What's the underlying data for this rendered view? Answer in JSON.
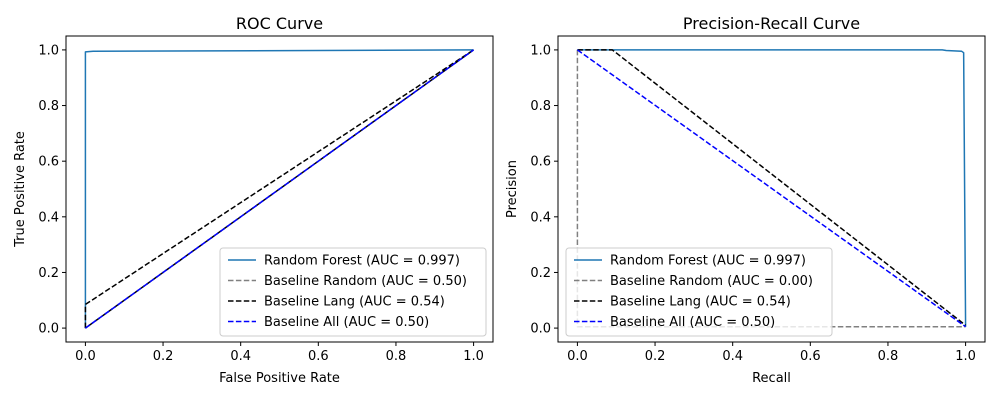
{
  "chart_data": [
    {
      "type": "line",
      "title": "ROC Curve",
      "xlabel": "False Positive Rate",
      "ylabel": "True Positive Rate",
      "xlim": [
        -0.05,
        1.05
      ],
      "ylim": [
        -0.05,
        1.05
      ],
      "xticks": [
        "0.0",
        "0.2",
        "0.4",
        "0.6",
        "0.8",
        "1.0"
      ],
      "yticks": [
        "0.0",
        "0.2",
        "0.4",
        "0.6",
        "0.8",
        "1.0"
      ],
      "grid": false,
      "legend_position": "lower-right",
      "series": [
        {
          "name": "Random Forest (AUC = 0.997)",
          "color": "#1f77b4",
          "dash": "solid",
          "x": [
            0,
            0,
            0.02,
            1.0
          ],
          "y": [
            0,
            0.993,
            0.995,
            1.0
          ]
        },
        {
          "name": "Baseline Random (AUC = 0.50)",
          "color": "#808080",
          "dash": "dashed",
          "x": [
            0,
            1
          ],
          "y": [
            0,
            1
          ]
        },
        {
          "name": "Baseline Lang (AUC = 0.54)",
          "color": "#000000",
          "dash": "dashed",
          "x": [
            0,
            0,
            1,
            1,
            0
          ],
          "y": [
            0,
            0.085,
            1.0,
            1.0,
            0
          ]
        },
        {
          "name": "Baseline All (AUC = 0.50)",
          "color": "#0000ff",
          "dash": "dashed",
          "x": [
            0,
            1
          ],
          "y": [
            0,
            1
          ]
        }
      ]
    },
    {
      "type": "line",
      "title": "Precision-Recall Curve",
      "xlabel": "Recall",
      "ylabel": "Precision",
      "xlim": [
        -0.05,
        1.05
      ],
      "ylim": [
        -0.05,
        1.05
      ],
      "xticks": [
        "0.0",
        "0.2",
        "0.4",
        "0.6",
        "0.8",
        "1.0"
      ],
      "yticks": [
        "0.0",
        "0.2",
        "0.4",
        "0.6",
        "0.8",
        "1.0"
      ],
      "grid": false,
      "legend_position": "lower-left",
      "series": [
        {
          "name": "Random Forest (AUC = 0.997)",
          "color": "#1f77b4",
          "dash": "solid",
          "x": [
            0,
            0.94,
            0.95,
            0.99,
            0.995,
            1.0
          ],
          "y": [
            1.0,
            1.0,
            0.998,
            0.995,
            0.99,
            0.005
          ]
        },
        {
          "name": "Baseline Random (AUC = 0.00)",
          "color": "#808080",
          "dash": "dashed",
          "x": [
            0,
            0,
            1.0
          ],
          "y": [
            1.0,
            0.005,
            0.005
          ]
        },
        {
          "name": "Baseline Lang (AUC = 0.54)",
          "color": "#000000",
          "dash": "dashed",
          "x": [
            0,
            0.09,
            1.0
          ],
          "y": [
            1.0,
            1.0,
            0.01
          ]
        },
        {
          "name": "Baseline All (AUC = 0.50)",
          "color": "#0000ff",
          "dash": "dashed",
          "x": [
            0,
            1.0
          ],
          "y": [
            1.0,
            0.005
          ]
        }
      ]
    }
  ]
}
